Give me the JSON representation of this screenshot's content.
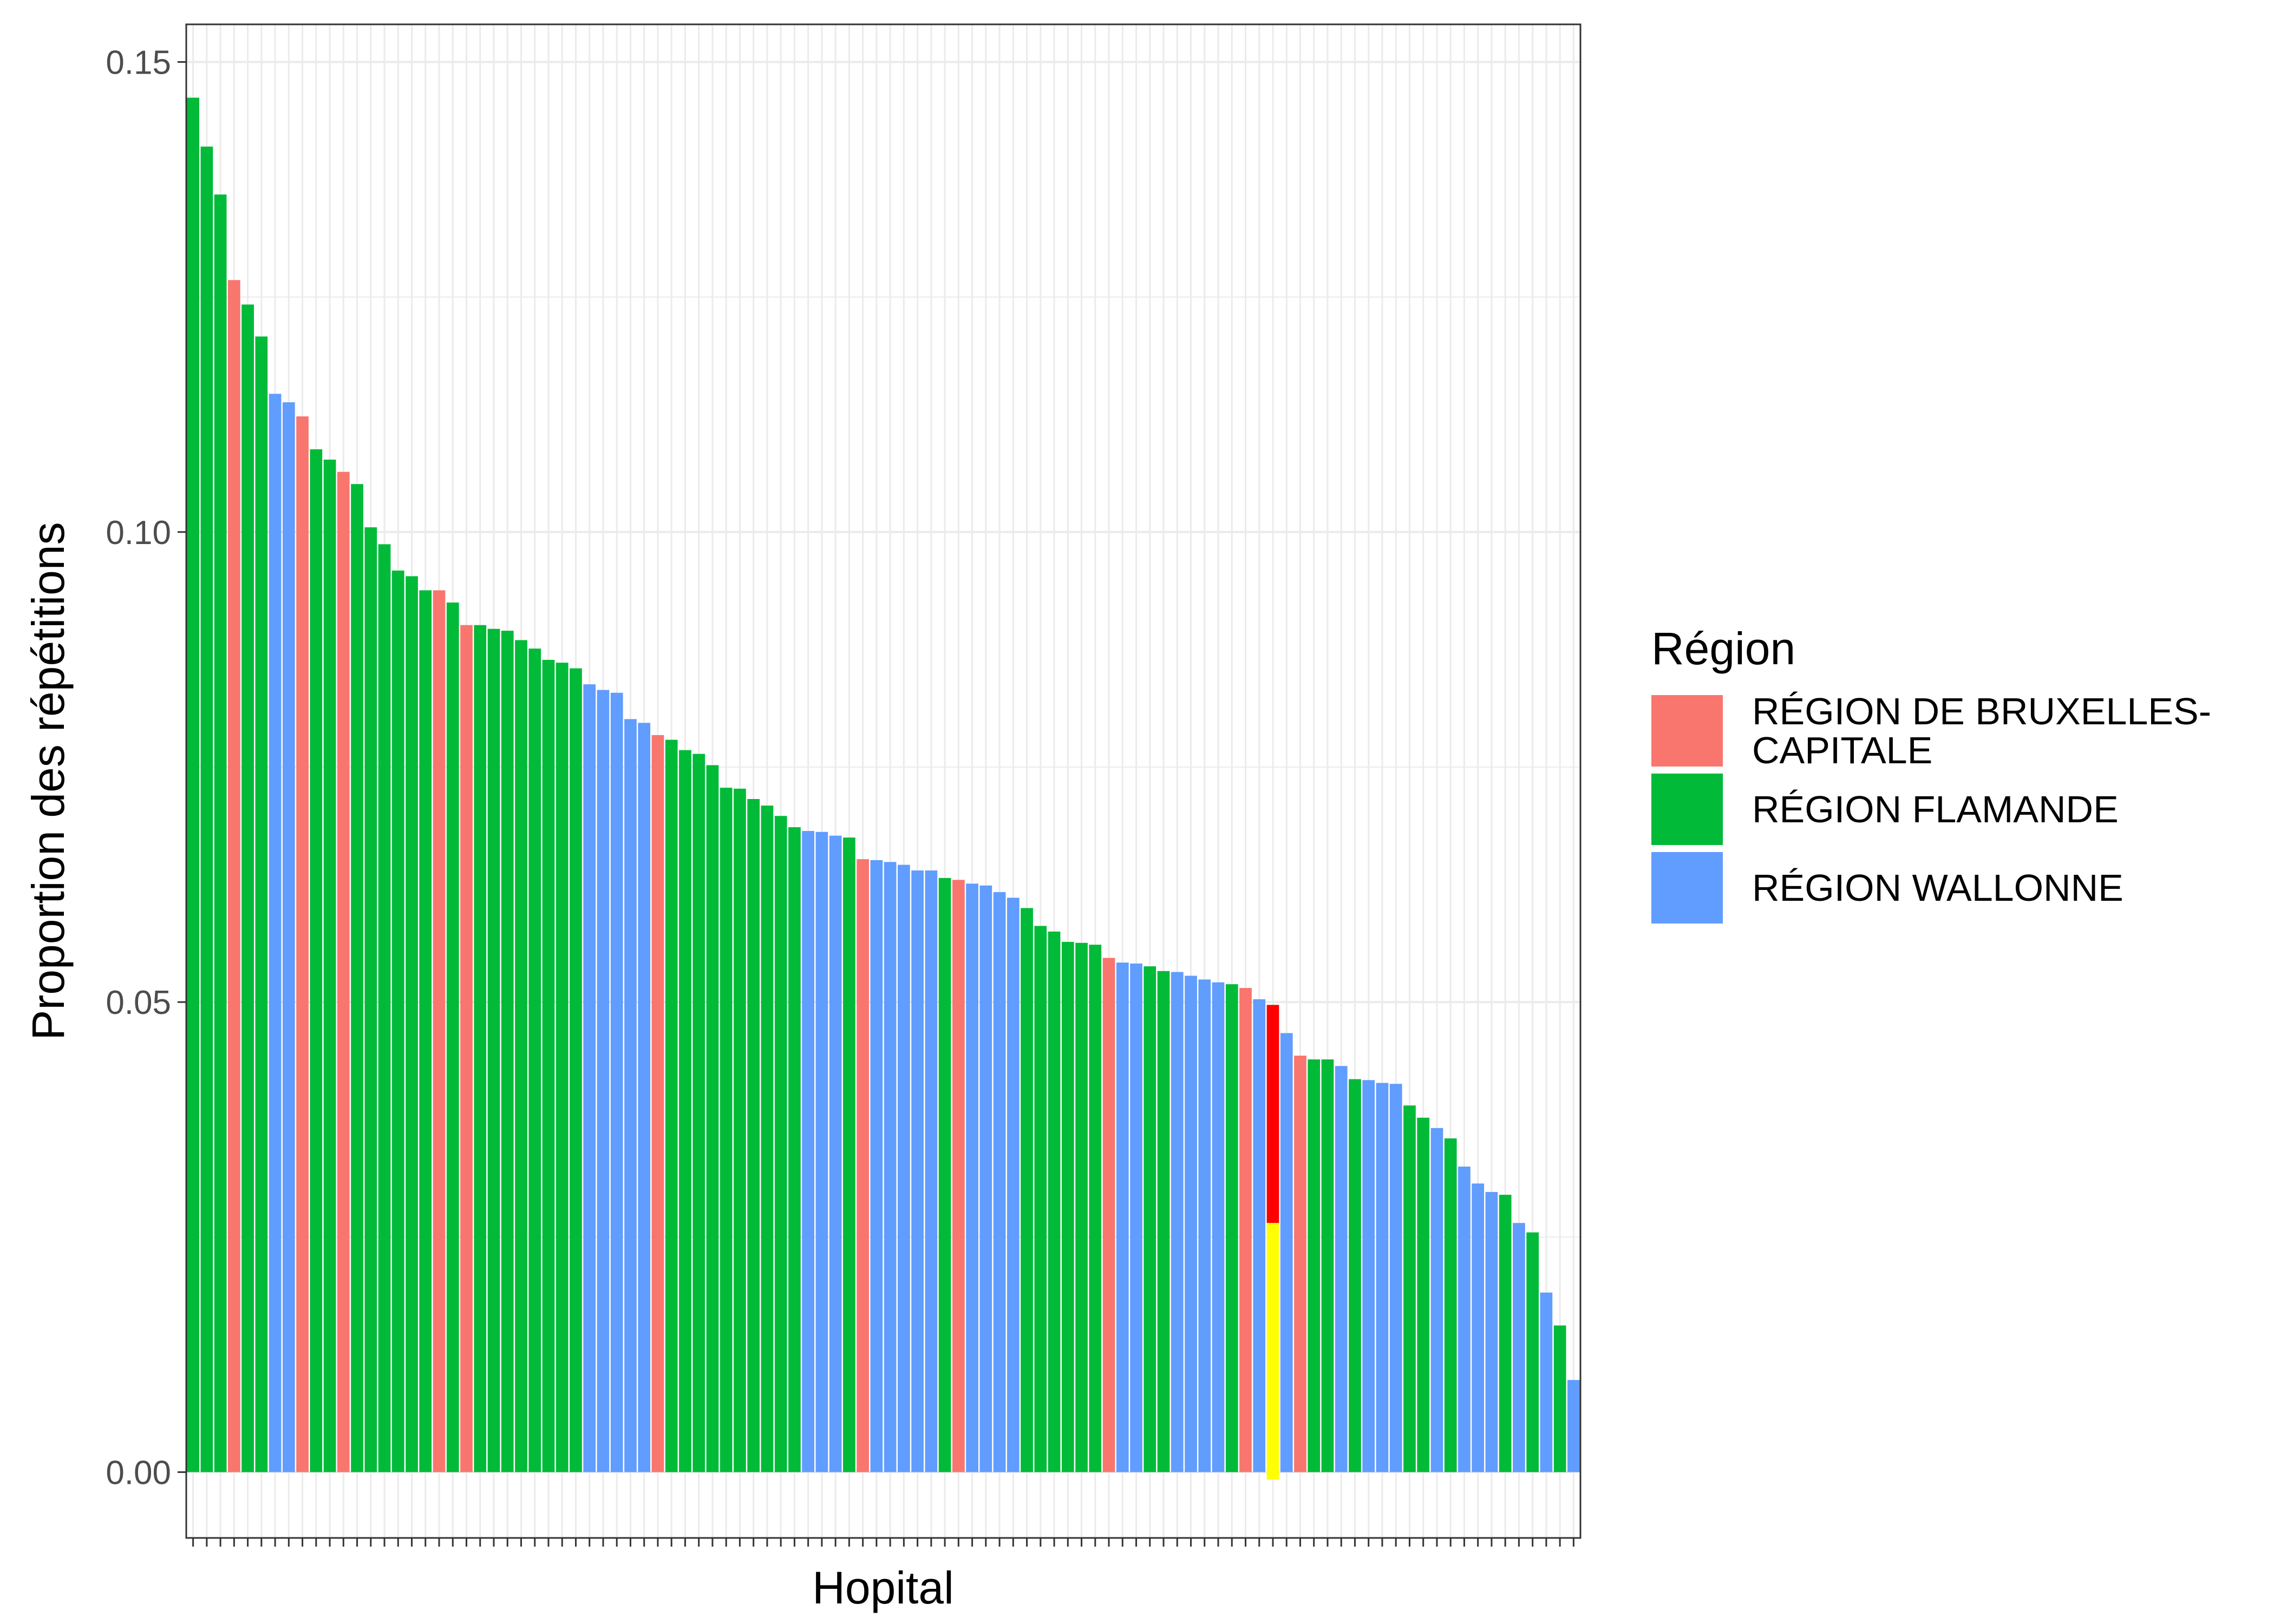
{
  "chart_data": {
    "type": "bar",
    "xlabel": "Hopital",
    "ylabel": "Proportion des répétitions",
    "ylim": [
      -0.007,
      0.154
    ],
    "yticks": [
      "0.00",
      "0.05",
      "0.10",
      "0.15"
    ],
    "grid": true,
    "legend_position": "right",
    "legend": {
      "title": "Région",
      "entries": [
        {
          "label": "RÉGION DE BRUXELLES-CAPITALE",
          "code": "B",
          "color": "#F8766D"
        },
        {
          "label": "RÉGION FLAMANDE",
          "code": "F",
          "color": "#00BA38"
        },
        {
          "label": "RÉGION WALLONNE",
          "code": "W",
          "color": "#619CFF"
        }
      ]
    },
    "highlight": {
      "index": 79,
      "lower": -0.0008,
      "upper": 0.0497,
      "mid": 0.0265,
      "upper_color": "#FF0000",
      "lower_color": "#FFFF00"
    },
    "values": [
      0.1462,
      0.141,
      0.1359,
      0.1268,
      0.1242,
      0.1208,
      0.1147,
      0.1138,
      0.1123,
      0.1088,
      0.1077,
      0.1064,
      0.1051,
      0.1005,
      0.0987,
      0.0959,
      0.0953,
      0.0938,
      0.0938,
      0.0925,
      0.0901,
      0.0901,
      0.0897,
      0.0895,
      0.0885,
      0.0876,
      0.0864,
      0.0861,
      0.0855,
      0.0838,
      0.0832,
      0.0829,
      0.0801,
      0.0797,
      0.0784,
      0.0779,
      0.0768,
      0.0764,
      0.0752,
      0.0728,
      0.0727,
      0.0716,
      0.0709,
      0.0698,
      0.0686,
      0.0682,
      0.0681,
      0.0677,
      0.0675,
      0.0652,
      0.0651,
      0.0649,
      0.0646,
      0.064,
      0.064,
      0.0632,
      0.063,
      0.0626,
      0.0624,
      0.0617,
      0.0611,
      0.06,
      0.0581,
      0.0575,
      0.0564,
      0.0563,
      0.0561,
      0.0547,
      0.0542,
      0.0541,
      0.0538,
      0.0533,
      0.0532,
      0.0528,
      0.0524,
      0.0521,
      0.0519,
      0.0515,
      0.0503,
      0.0497,
      0.0467,
      0.0443,
      0.0439,
      0.0439,
      0.0432,
      0.0418,
      0.0417,
      0.0414,
      0.0413,
      0.039,
      0.0377,
      0.0366,
      0.0355,
      0.0325,
      0.0307,
      0.0298,
      0.0295,
      0.0265,
      0.0255,
      0.0191,
      0.0156,
      0.0098
    ],
    "regions": [
      "F",
      "F",
      "F",
      "B",
      "F",
      "F",
      "W",
      "W",
      "B",
      "F",
      "F",
      "B",
      "F",
      "F",
      "F",
      "F",
      "F",
      "F",
      "B",
      "F",
      "B",
      "F",
      "F",
      "F",
      "F",
      "F",
      "F",
      "F",
      "F",
      "W",
      "W",
      "W",
      "W",
      "W",
      "B",
      "F",
      "F",
      "F",
      "F",
      "F",
      "F",
      "F",
      "F",
      "F",
      "F",
      "W",
      "W",
      "W",
      "F",
      "B",
      "W",
      "W",
      "W",
      "W",
      "W",
      "F",
      "B",
      "W",
      "W",
      "W",
      "W",
      "F",
      "F",
      "F",
      "F",
      "F",
      "F",
      "B",
      "W",
      "W",
      "F",
      "F",
      "W",
      "W",
      "W",
      "W",
      "F",
      "B",
      "W",
      "H",
      "W",
      "B",
      "F",
      "F",
      "W",
      "F",
      "W",
      "W",
      "W",
      "F",
      "F",
      "W",
      "F",
      "W",
      "W",
      "W",
      "F",
      "W",
      "F",
      "W",
      "F",
      "W"
    ]
  }
}
